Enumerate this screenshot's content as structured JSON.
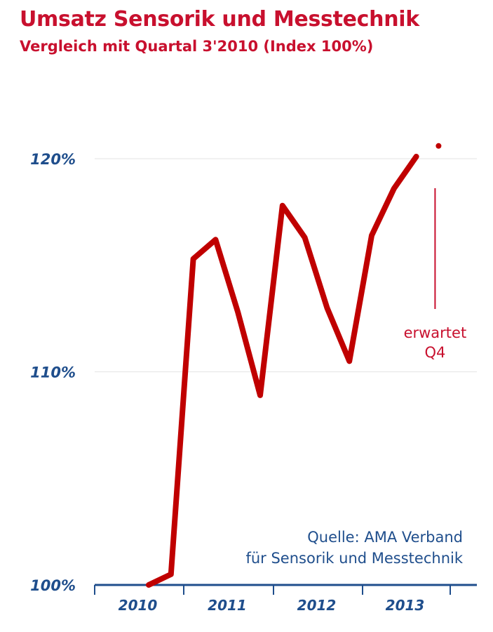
{
  "chart_data": {
    "type": "line",
    "title": "Umsatz Sensorik und Messtechnik",
    "subtitle": "Vergleich mit Quartal 3'2010 (Index 100%)",
    "xlabel": "",
    "ylabel": "",
    "x_tick_labels": [
      "2010",
      "2011",
      "2012",
      "2013"
    ],
    "y_ticks": [
      100,
      110,
      120
    ],
    "y_tick_labels": [
      "100%",
      "110%",
      "120%"
    ],
    "ylim": [
      100,
      122
    ],
    "grid": true,
    "series": [
      {
        "color": "#c00000",
        "points": [
          {
            "x": "Q3 2010",
            "y": 100.0
          },
          {
            "x": "Q4 2010",
            "y": 100.5
          },
          {
            "x": "Q1 2011",
            "y": 115.3
          },
          {
            "x": "Q2 2011",
            "y": 116.2
          },
          {
            "x": "Q3 2011",
            "y": 112.8
          },
          {
            "x": "Q4 2011",
            "y": 108.9
          },
          {
            "x": "Q1 2012",
            "y": 117.8
          },
          {
            "x": "Q2 2012",
            "y": 116.3
          },
          {
            "x": "Q3 2012",
            "y": 113.0
          },
          {
            "x": "Q4 2012",
            "y": 110.5
          },
          {
            "x": "Q1 2013",
            "y": 116.4
          },
          {
            "x": "Q2 2013",
            "y": 118.6
          },
          {
            "x": "Q3 2013",
            "y": 120.1
          },
          {
            "x": "Q4 2013",
            "y": 120.6,
            "expected": true
          }
        ]
      }
    ],
    "annotations": [
      {
        "text_lines": [
          "erwartet",
          "Q4"
        ],
        "target": "Q4 2013"
      }
    ],
    "source_lines": [
      "Quelle: AMA Verband",
      "für Sensorik und Messtechnik"
    ]
  }
}
